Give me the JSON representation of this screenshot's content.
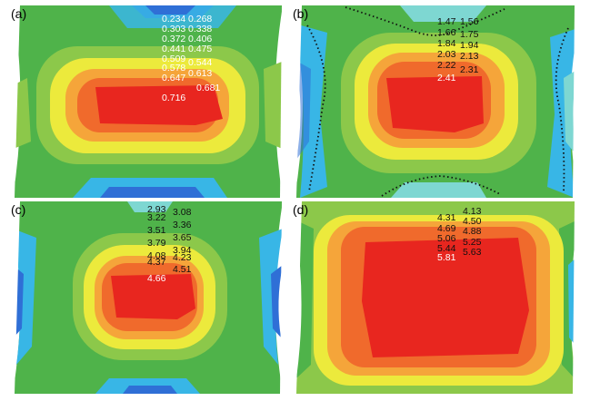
{
  "panels": [
    {
      "label": "(a)",
      "values": [
        "0.234",
        "0.268",
        "0.303",
        "0.338",
        "0.372",
        "0.406",
        "0.441",
        "0.475",
        "0.509",
        "0.544",
        "0.578",
        "0.613",
        "0.647",
        "0.681",
        "0.716"
      ]
    },
    {
      "label": "(b)",
      "values": [
        "1.47",
        "1.56",
        "1.66",
        "1.75",
        "1.84",
        "1.94",
        "2.03",
        "2.13",
        "2.22",
        "2.31",
        "2.41"
      ]
    },
    {
      "label": "(c)",
      "values": [
        "2.93",
        "3.08",
        "3.22",
        "3.36",
        "3.51",
        "3.65",
        "3.79",
        "3.94",
        "4.08",
        "4.23",
        "4.37",
        "4.51",
        "4.66"
      ]
    },
    {
      "label": "(d)",
      "values": [
        "4.31",
        "4.13",
        "4.69",
        "4.50",
        "5.06",
        "4.88",
        "5.44",
        "5.25",
        "5.81",
        "5.63"
      ]
    }
  ],
  "colors": {
    "blue": "#2f6fd6",
    "light_blue": "#38b6e6",
    "cyan": "#7ed7d2",
    "green": "#4fb34a",
    "light_green": "#8cc84a",
    "yellow": "#ecea3c",
    "orange": "#f5a53a",
    "dark_orange": "#f06a2c",
    "red": "#e8261f"
  }
}
